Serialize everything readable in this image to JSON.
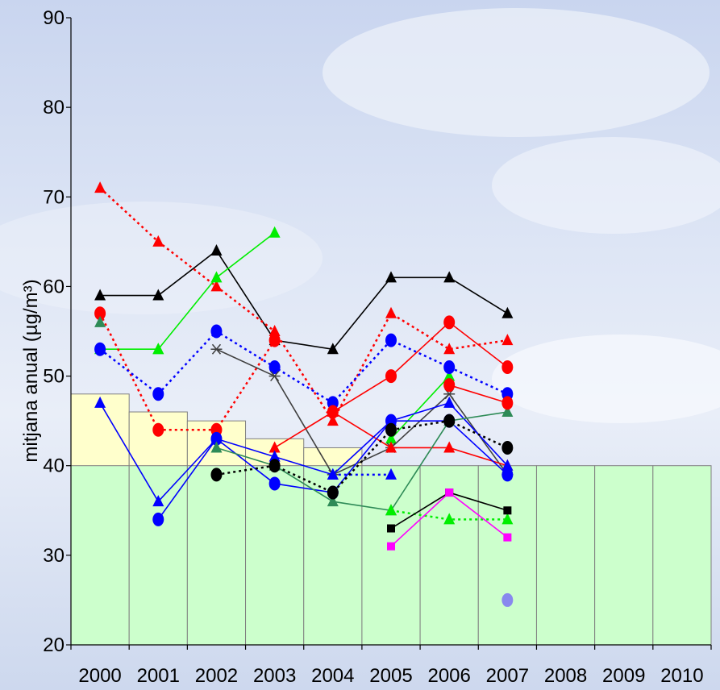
{
  "chart_data": {
    "type": "line",
    "title": "",
    "xlabel": "",
    "ylabel": "mitjana anual (µg/m³)",
    "x_categories": [
      "2000",
      "2001",
      "2002",
      "2003",
      "2004",
      "2005",
      "2006",
      "2007",
      "2008",
      "2009",
      "2010"
    ],
    "y_ticks": [
      "20",
      "30",
      "40",
      "50",
      "60",
      "70",
      "80",
      "90"
    ],
    "ylim": [
      20,
      90
    ],
    "grid": false,
    "colors": {
      "limit_fill": "#ccffcc",
      "tolerance_fill": "#ffffcc",
      "background": "#dce4f4"
    },
    "limit_bars": {
      "name": "",
      "values": [
        40,
        40,
        40,
        40,
        40,
        40,
        40,
        40,
        40,
        40,
        40
      ]
    },
    "tolerance_bars": {
      "name": "",
      "values": [
        48,
        46,
        45,
        43,
        42,
        null,
        null,
        null,
        null,
        null,
        null
      ]
    },
    "series": [
      {
        "color": "#000000",
        "marker": "triangle",
        "dash": "solid",
        "values": [
          59,
          59,
          64,
          54,
          53,
          61,
          61,
          57,
          null,
          null,
          null
        ]
      },
      {
        "color": "#ff0000",
        "marker": "triangle",
        "dash": "dotted",
        "values": [
          71,
          65,
          60,
          55,
          45,
          57,
          53,
          54,
          null,
          null,
          null
        ]
      },
      {
        "color": "#00ee00",
        "marker": "triangle",
        "dash": "solid",
        "values": [
          null,
          53,
          61,
          66,
          null,
          null,
          null,
          null,
          null,
          null,
          null
        ]
      },
      {
        "color": "#00ee00",
        "marker": "triangle",
        "dash": "solid",
        "values": [
          53,
          53,
          null,
          null,
          null,
          43,
          50,
          null,
          null,
          null,
          null
        ]
      },
      {
        "color": "#ff0000",
        "marker": "circle",
        "dash": "dotted",
        "values": [
          57,
          44,
          44,
          54,
          null,
          null,
          null,
          null,
          null,
          null,
          null
        ]
      },
      {
        "color": "#0000ff",
        "marker": "circle",
        "dash": "dotted",
        "values": [
          53,
          48,
          55,
          51,
          47,
          54,
          51,
          48,
          null,
          null,
          null
        ]
      },
      {
        "color": "#404040",
        "marker": "star",
        "dash": "solid",
        "values": [
          null,
          null,
          53,
          50,
          39,
          42,
          48,
          39,
          null,
          null,
          null
        ]
      },
      {
        "color": "#ff0000",
        "marker": "circle",
        "dash": "solid",
        "values": [
          null,
          null,
          null,
          null,
          46,
          50,
          56,
          51,
          null,
          null,
          null
        ]
      },
      {
        "color": "#ff0000",
        "marker": "triangle",
        "dash": "solid",
        "values": [
          null,
          null,
          null,
          42,
          46,
          42,
          42,
          40,
          null,
          null,
          null
        ]
      },
      {
        "color": "#0000ff",
        "marker": "triangle",
        "dash": "solid",
        "values": [
          47,
          36,
          43,
          41,
          39,
          45,
          47,
          40,
          null,
          null,
          null
        ]
      },
      {
        "color": "#0000ff",
        "marker": "circle",
        "dash": "solid",
        "values": [
          null,
          34,
          43,
          38,
          37,
          45,
          45,
          39,
          null,
          null,
          null
        ]
      },
      {
        "color": "#2e8b57",
        "marker": "triangle",
        "dash": "solid",
        "values": [
          56,
          null,
          42,
          40,
          36,
          35,
          45,
          46,
          null,
          null,
          null
        ]
      },
      {
        "color": "#0000ff",
        "marker": "triangle",
        "dash": "dotted",
        "values": [
          null,
          null,
          null,
          null,
          39,
          39,
          null,
          null,
          null,
          null,
          null
        ]
      },
      {
        "color": "#000000",
        "marker": "circle",
        "dash": "dotted",
        "values": [
          null,
          null,
          39,
          40,
          37,
          44,
          45,
          42,
          null,
          null,
          null
        ]
      },
      {
        "color": "#ff0000",
        "marker": "circle",
        "dash": "solid",
        "values": [
          null,
          null,
          null,
          null,
          null,
          null,
          49,
          47,
          null,
          null,
          null
        ]
      },
      {
        "color": "#00ee00",
        "marker": "triangle",
        "dash": "dotted",
        "values": [
          null,
          null,
          null,
          null,
          null,
          35,
          34,
          34,
          null,
          null,
          null
        ]
      },
      {
        "color": "#000000",
        "marker": "square",
        "dash": "solid",
        "values": [
          null,
          null,
          null,
          null,
          null,
          33,
          37,
          35,
          null,
          null,
          null
        ]
      },
      {
        "color": "#ff00ff",
        "marker": "square",
        "dash": "solid",
        "values": [
          null,
          null,
          null,
          null,
          null,
          31,
          37,
          32,
          null,
          null,
          null
        ]
      },
      {
        "color": "#8888ee",
        "marker": "circle",
        "dash": "none",
        "values": [
          null,
          null,
          null,
          null,
          null,
          null,
          null,
          25,
          null,
          null,
          null
        ]
      }
    ]
  }
}
